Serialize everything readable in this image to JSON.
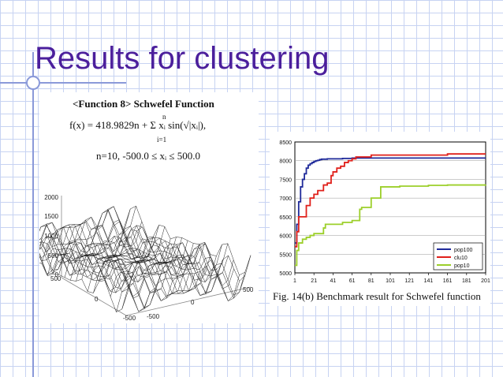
{
  "slide": {
    "title": "Results for clustering"
  },
  "function_box": {
    "heading": "<Function 8> Schwefel Function",
    "formula": "f(x) = 418.9829n + Σ xᵢ sin(√|xᵢ|),",
    "sum_from": "i=1",
    "sum_to": "n",
    "range": "n=10, -500.0 ≤ xᵢ ≤ 500.0"
  },
  "surface_plot": {
    "z_ticks": [
      "2000",
      "1500",
      "1000",
      "500",
      "0"
    ],
    "x_ticks": [
      "500",
      "0",
      "-500"
    ],
    "y_ticks": [
      "500",
      "0",
      "-500"
    ]
  },
  "caption": "Fig. 14(b) Benchmark result for Schwefel function",
  "colors": {
    "title": "#4b1f9c",
    "pop100": "#1f2a9a",
    "clu10": "#e0201a",
    "pop10": "#9ccf2a"
  },
  "chart_data": {
    "type": "line",
    "title": "",
    "xlabel": "",
    "ylabel": "",
    "x_ticks": [
      "1",
      "21",
      "41",
      "61",
      "81",
      "101",
      "121",
      "141",
      "161",
      "181",
      "201"
    ],
    "y_ticks": [
      "5000",
      "5500",
      "6000",
      "6500",
      "7000",
      "7500",
      "8000",
      "8500"
    ],
    "xlim": [
      1,
      201
    ],
    "ylim": [
      5000,
      8500
    ],
    "legend_position": "bottom-right",
    "series": [
      {
        "name": "pop100",
        "color": "#1f2a9a",
        "x": [
          1,
          3,
          5,
          7,
          9,
          11,
          13,
          15,
          17,
          19,
          21,
          23,
          25,
          27,
          29,
          31,
          35,
          41,
          51,
          61,
          71,
          81,
          101,
          141,
          181,
          201
        ],
        "y": [
          5800,
          6300,
          6900,
          7300,
          7500,
          7650,
          7800,
          7880,
          7920,
          7950,
          7980,
          8000,
          8010,
          8030,
          8040,
          8040,
          8050,
          8050,
          8060,
          8070,
          8070,
          8070,
          8070,
          8070,
          8070,
          8070
        ]
      },
      {
        "name": "clu10",
        "color": "#e0201a",
        "x": [
          1,
          3,
          5,
          7,
          9,
          13,
          17,
          21,
          23,
          25,
          27,
          31,
          35,
          39,
          41,
          45,
          49,
          53,
          57,
          61,
          65,
          71,
          81,
          101,
          121,
          141,
          161,
          181,
          201
        ],
        "y": [
          5700,
          6100,
          6500,
          6500,
          6500,
          6800,
          7000,
          7100,
          7100,
          7200,
          7200,
          7350,
          7400,
          7600,
          7700,
          7800,
          7850,
          7950,
          8000,
          8050,
          8100,
          8100,
          8150,
          8150,
          8150,
          8150,
          8180,
          8180,
          8180
        ]
      },
      {
        "name": "pop10",
        "color": "#9ccf2a",
        "x": [
          1,
          3,
          5,
          9,
          13,
          17,
          21,
          31,
          33,
          41,
          51,
          61,
          69,
          71,
          75,
          81,
          85,
          91,
          101,
          111,
          121,
          141,
          161,
          181,
          201
        ],
        "y": [
          5200,
          5600,
          5800,
          5900,
          5950,
          6000,
          6050,
          6200,
          6300,
          6300,
          6350,
          6400,
          6700,
          6750,
          6750,
          7000,
          7000,
          7300,
          7300,
          7320,
          7320,
          7340,
          7350,
          7350,
          7360
        ]
      }
    ]
  }
}
